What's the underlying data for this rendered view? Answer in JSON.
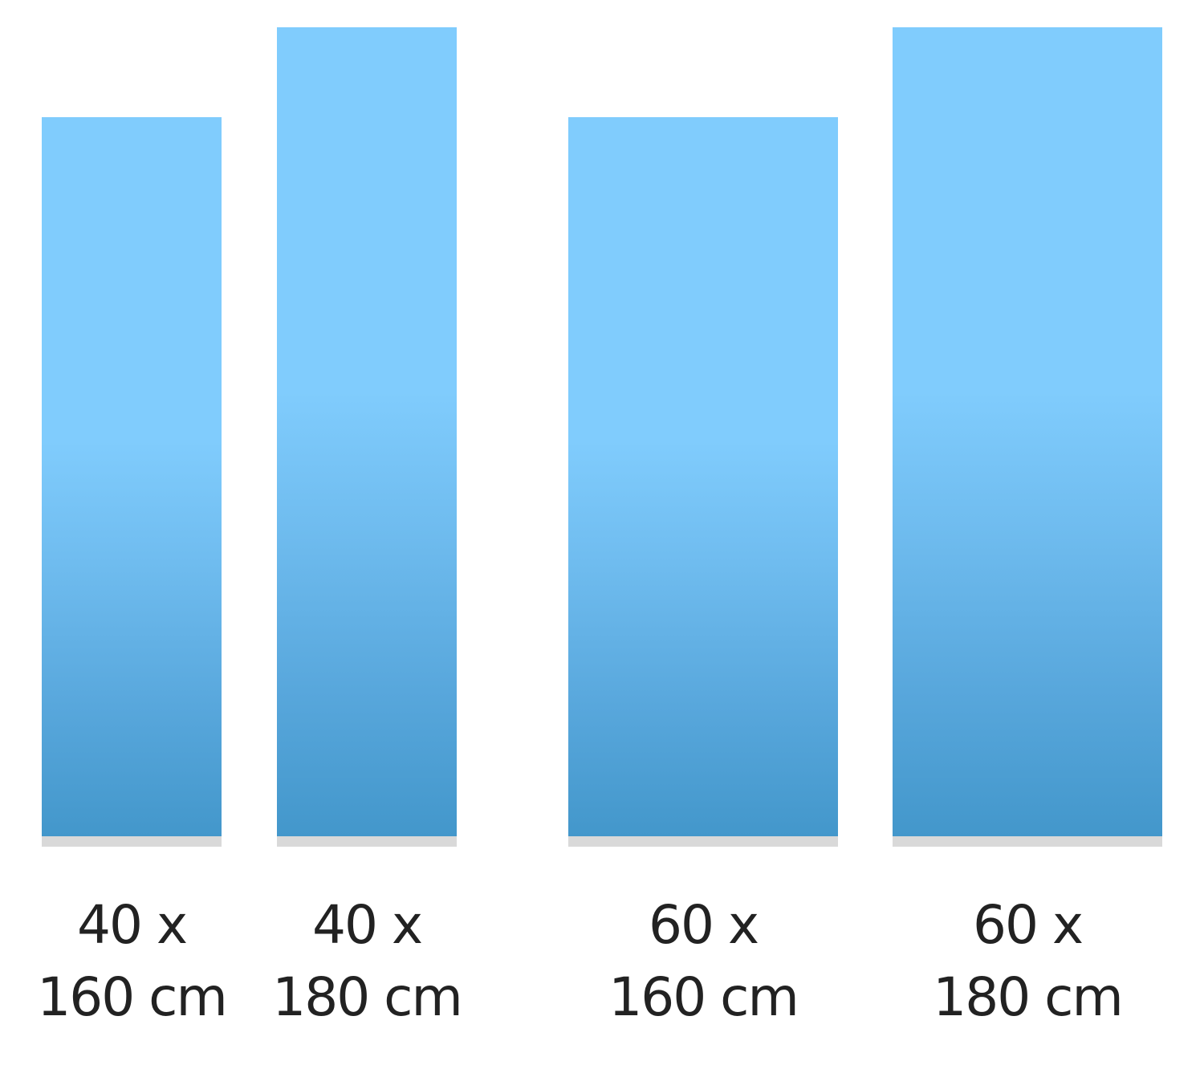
{
  "chart_data": {
    "type": "bar",
    "unit": "cm",
    "items": [
      {
        "width": 40,
        "length": 160,
        "label_line1": "40 x",
        "label_line2": "160 cm"
      },
      {
        "width": 40,
        "length": 180,
        "label_line1": "40 x",
        "label_line2": "180 cm"
      },
      {
        "width": 60,
        "length": 160,
        "label_line1": "60 x",
        "label_line2": "160 cm"
      },
      {
        "width": 60,
        "length": 180,
        "label_line1": "60 x",
        "label_line2": "180 cm"
      }
    ],
    "colors": {
      "top": "#80ccfd",
      "bottom": "#4397cb",
      "shadow": "#d9d9d9"
    }
  }
}
